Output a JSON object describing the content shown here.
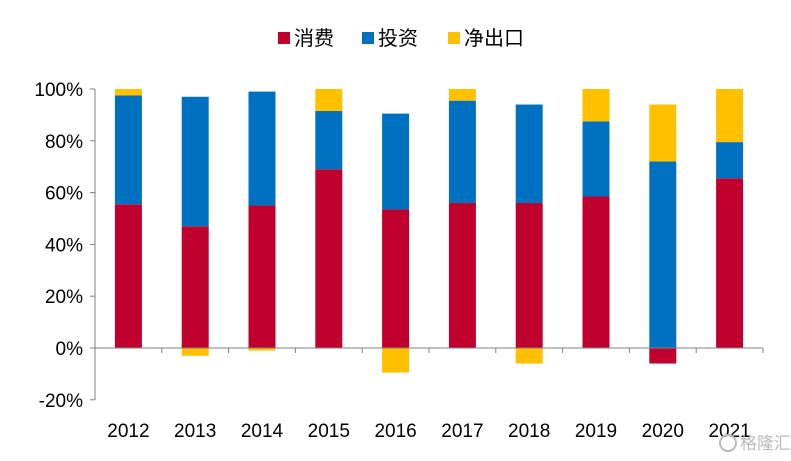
{
  "chart_data": {
    "type": "bar",
    "stacked": true,
    "categories": [
      "2012",
      "2013",
      "2014",
      "2015",
      "2016",
      "2017",
      "2018",
      "2019",
      "2020",
      "2021"
    ],
    "series": [
      {
        "name": "消费",
        "color": "#C0002D",
        "values": [
          55.5,
          47,
          55,
          69,
          53.5,
          56,
          56,
          58.5,
          -6,
          65.5
        ]
      },
      {
        "name": "投资",
        "color": "#0070C0",
        "values": [
          42,
          50,
          44,
          22.5,
          37,
          39.5,
          38,
          29,
          72,
          14
        ]
      },
      {
        "name": "净出口",
        "color": "#FFC000",
        "values": [
          2.5,
          -3,
          -1,
          8.5,
          -9.5,
          4.5,
          -6,
          12.5,
          22,
          20.5
        ]
      }
    ],
    "yticks": [
      "-20%",
      "0%",
      "20%",
      "40%",
      "60%",
      "80%",
      "100%"
    ],
    "ylim": [
      -20,
      100
    ],
    "legend_position": "top-center",
    "grid": false
  },
  "watermark": "格隆汇"
}
